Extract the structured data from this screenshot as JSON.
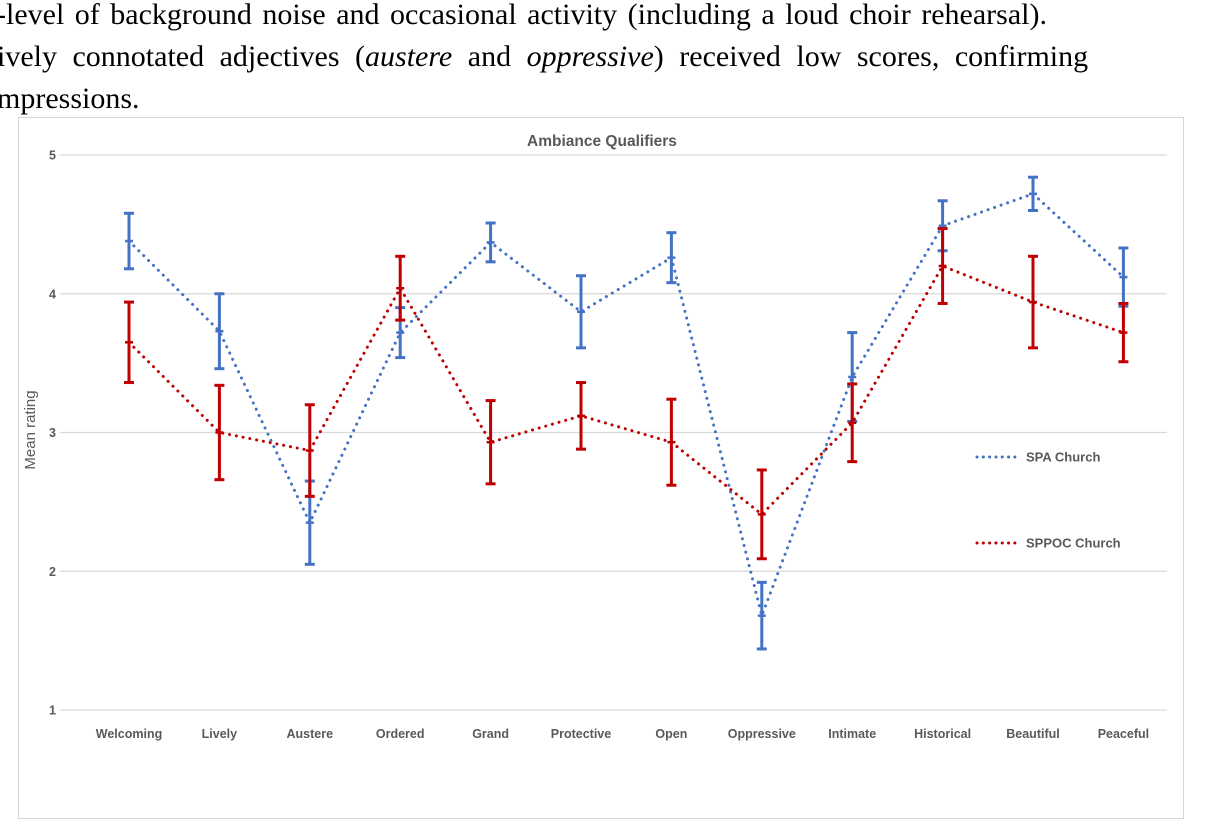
{
  "document": {
    "line1": "-level of background noise and occasional activity (including a loud choir rehearsal).",
    "line2_prefix": "ively connotated adjectives (",
    "line2_italic1": "austere",
    "line2_mid": " and ",
    "line2_italic2": "oppressive",
    "line2_suffix": ") received low scores, confirming",
    "line3": "mpressions."
  },
  "chart_data": {
    "type": "line",
    "title": "Ambiance Qualifiers",
    "xlabel": "",
    "ylabel": "Mean rating",
    "ylim": [
      1,
      5
    ],
    "yticks": [
      5,
      4,
      3,
      2,
      1
    ],
    "grid": true,
    "legend_position": "right-middle",
    "line_style": "dotted",
    "error_bars": true,
    "categories": [
      "Welcoming",
      "Lively",
      "Austere",
      "Ordered",
      "Grand",
      "Protective",
      "Open",
      "Oppressive",
      "Intimate",
      "Historical",
      "Beautiful",
      "Peaceful"
    ],
    "series": [
      {
        "name": "SPA Church",
        "color": "#4472C4",
        "values": [
          4.38,
          3.73,
          2.35,
          3.72,
          4.37,
          3.87,
          4.26,
          1.68,
          3.4,
          4.49,
          4.72,
          4.12
        ],
        "errors": [
          0.2,
          0.27,
          0.3,
          0.18,
          0.14,
          0.26,
          0.18,
          0.24,
          0.32,
          0.18,
          0.12,
          0.21
        ]
      },
      {
        "name": "SPPOC Church",
        "color": "#C00000",
        "values": [
          3.65,
          3.0,
          2.87,
          4.04,
          2.93,
          3.12,
          2.93,
          2.41,
          3.07,
          4.2,
          3.94,
          3.72
        ],
        "errors": [
          0.29,
          0.34,
          0.33,
          0.23,
          0.3,
          0.24,
          0.31,
          0.32,
          0.28,
          0.27,
          0.33,
          0.21
        ]
      }
    ]
  },
  "colors": {
    "grid": "#D9D9D9",
    "axis_text": "#595959",
    "frame_border": "#D6D6D6",
    "series_blue": "#4472C4",
    "series_red": "#C00000"
  }
}
